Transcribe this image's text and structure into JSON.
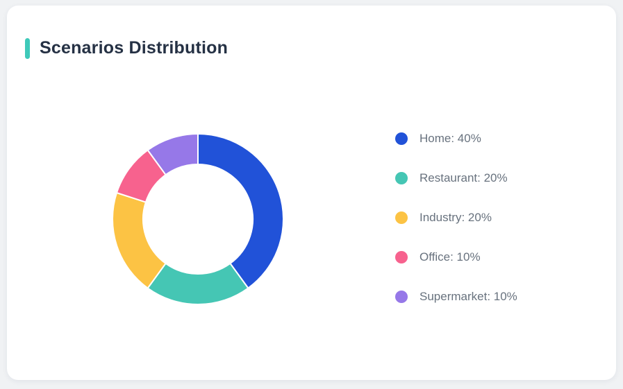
{
  "header": {
    "title": "Scenarios Distribution",
    "accent_color": "#3ec9b9"
  },
  "colors": {
    "page_bg": "#f0f2f4",
    "card_bg": "#ffffff",
    "title_text": "#253144",
    "legend_text": "#68727e",
    "slice_gap_stroke": "#ffffff"
  },
  "chart_data": {
    "type": "pie",
    "subtype": "donut",
    "title": "Scenarios Distribution",
    "categories": [
      "Home",
      "Restaurant",
      "Industry",
      "Office",
      "Supermarket"
    ],
    "values": [
      40,
      20,
      20,
      10,
      10
    ],
    "unit": "%",
    "colors": [
      "#2152d8",
      "#45c6b4",
      "#fcc344",
      "#f7628e",
      "#9678e8"
    ],
    "inner_radius_ratio": 0.63,
    "start_angle_deg": 0,
    "direction": "clockwise",
    "grid": false,
    "legend_position": "right",
    "legend_labels": [
      "Home: 40%",
      "Restaurant: 20%",
      "Industry: 20%",
      "Office: 10%",
      "Supermarket: 10%"
    ]
  }
}
